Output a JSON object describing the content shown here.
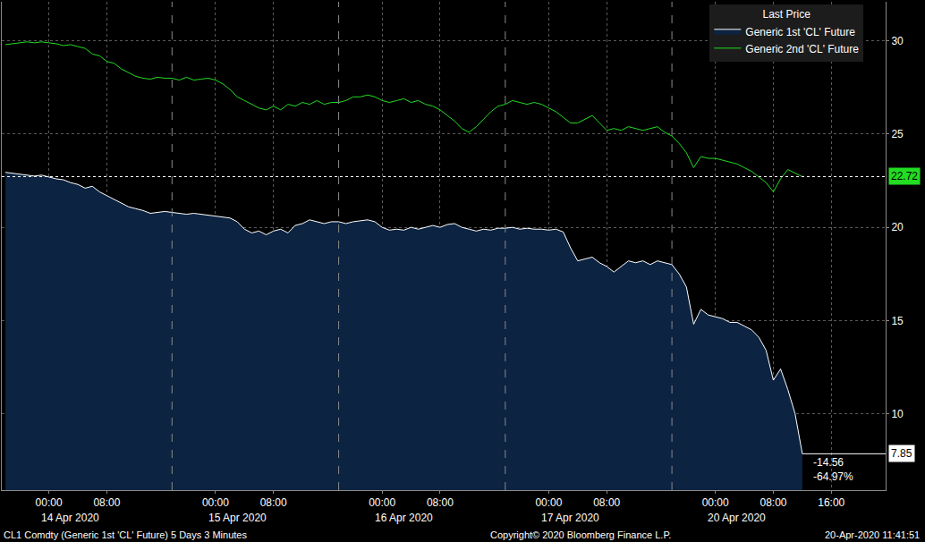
{
  "chart_data": {
    "type": "line",
    "categories": [
      null,
      null,
      null,
      null,
      null,
      null,
      "00:00",
      null,
      null,
      null,
      null,
      null,
      null,
      null,
      "08:00",
      null,
      null,
      null,
      null,
      null,
      null,
      null,
      null,
      null,
      null,
      null,
      null,
      null,
      null,
      "00:00",
      null,
      null,
      null,
      null,
      null,
      null,
      null,
      "08:00",
      null,
      null,
      null,
      null,
      null,
      null,
      null,
      null,
      null,
      null,
      null,
      null,
      null,
      null,
      "00:00",
      null,
      null,
      null,
      null,
      null,
      null,
      null,
      "08:00",
      null,
      null,
      null,
      null,
      null,
      null,
      null,
      null,
      null,
      null,
      null,
      null,
      null,
      null,
      "00:00",
      null,
      null,
      null,
      null,
      null,
      null,
      null,
      "08:00",
      null,
      null,
      null,
      null,
      null,
      null,
      null,
      null,
      null,
      null,
      null,
      null,
      null,
      null,
      "00:00",
      null,
      null,
      null,
      null,
      null,
      null,
      null,
      "08:00",
      null,
      null,
      null,
      null,
      null,
      null,
      null,
      "16:00",
      null,
      null,
      null,
      null,
      null,
      null,
      null
    ],
    "series": [
      {
        "name": "Generic 1st 'CL' Future",
        "color": "#ffffff",
        "values": [
          22.95,
          22.9,
          22.85,
          22.8,
          22.75,
          22.8,
          22.7,
          22.6,
          22.55,
          22.4,
          22.3,
          22.1,
          22.2,
          21.9,
          21.7,
          21.5,
          21.3,
          21.1,
          21.0,
          20.9,
          20.75,
          20.8,
          20.85,
          20.8,
          20.75,
          20.7,
          20.75,
          20.7,
          20.65,
          20.6,
          20.55,
          20.5,
          20.3,
          19.9,
          19.7,
          19.8,
          19.6,
          19.8,
          19.9,
          19.7,
          20.1,
          20.2,
          20.4,
          20.3,
          20.2,
          20.3,
          20.3,
          20.2,
          20.3,
          20.35,
          20.4,
          20.3,
          20.0,
          19.85,
          19.9,
          19.85,
          20.0,
          19.9,
          20.0,
          20.1,
          20.0,
          20.15,
          20.2,
          20.0,
          19.9,
          19.8,
          19.9,
          19.85,
          19.95,
          19.95,
          20.0,
          19.9,
          19.95,
          19.9,
          19.9,
          19.85,
          19.9,
          19.75,
          18.9,
          18.2,
          18.3,
          18.4,
          18.1,
          17.9,
          17.6,
          17.9,
          18.2,
          18.1,
          18.2,
          18.0,
          18.2,
          18.1,
          18.0,
          17.5,
          16.8,
          14.8,
          15.6,
          15.3,
          15.2,
          15.1,
          14.9,
          14.9,
          14.7,
          14.5,
          14.1,
          13.4,
          11.8,
          12.4,
          11.3,
          10.0,
          7.85,
          null,
          null,
          null,
          null,
          null,
          null,
          null,
          null,
          null,
          null,
          null
        ]
      },
      {
        "name": "Generic 2nd 'CL' Future",
        "color": "#22dd22",
        "values": [
          29.8,
          29.85,
          29.9,
          29.95,
          29.9,
          29.95,
          29.9,
          29.85,
          29.75,
          29.8,
          29.7,
          29.6,
          29.3,
          29.2,
          28.9,
          28.8,
          28.5,
          28.3,
          28.1,
          28.0,
          27.95,
          28.05,
          28.0,
          28.0,
          27.9,
          28.05,
          27.9,
          27.95,
          28.0,
          27.9,
          27.7,
          27.4,
          27.0,
          26.8,
          26.6,
          26.4,
          26.3,
          26.5,
          26.3,
          26.6,
          26.5,
          26.7,
          26.6,
          26.8,
          26.6,
          26.7,
          26.7,
          26.8,
          27.0,
          27.0,
          27.1,
          27.0,
          26.8,
          26.7,
          26.8,
          26.9,
          26.7,
          26.8,
          26.6,
          26.5,
          26.3,
          26.0,
          25.7,
          25.3,
          25.1,
          25.4,
          25.8,
          26.2,
          26.5,
          26.6,
          26.8,
          26.7,
          26.6,
          26.7,
          26.6,
          26.4,
          26.2,
          25.9,
          25.6,
          25.6,
          25.8,
          26.0,
          25.6,
          25.2,
          25.3,
          25.2,
          25.4,
          25.3,
          25.2,
          25.3,
          25.4,
          25.1,
          24.9,
          24.5,
          24.0,
          23.2,
          23.8,
          23.7,
          23.7,
          23.6,
          23.5,
          23.4,
          23.2,
          23.0,
          22.7,
          22.4,
          21.9,
          22.6,
          23.1,
          22.9,
          22.72,
          null,
          null,
          null,
          null,
          null,
          null,
          null,
          null,
          null,
          null,
          null
        ]
      }
    ],
    "sessions": [
      {
        "label": "14 Apr 2020",
        "start": 0
      },
      {
        "label": "15 Apr 2020",
        "start": 23
      },
      {
        "label": "16 Apr 2020",
        "start": 46
      },
      {
        "label": "17 Apr 2020",
        "start": 69
      },
      {
        "label": "20 Apr 2020",
        "start": 92
      }
    ],
    "ylim": [
      5.9,
      32.1
    ],
    "yticks": [
      10,
      15,
      20,
      25,
      30
    ],
    "grid": true,
    "legend": "upper right",
    "legend_title": "Last Price",
    "annotations": [
      {
        "text": "-14.56"
      },
      {
        "text": "-64.97%"
      }
    ],
    "footer": {
      "left": "CL1 Comdty (Generic 1st 'CL' Future) 5 Days 3 Minutes",
      "center": "Copyright© 2020 Bloomberg Finance L.P.",
      "right": "20-Apr-2020 11:41:51"
    }
  }
}
